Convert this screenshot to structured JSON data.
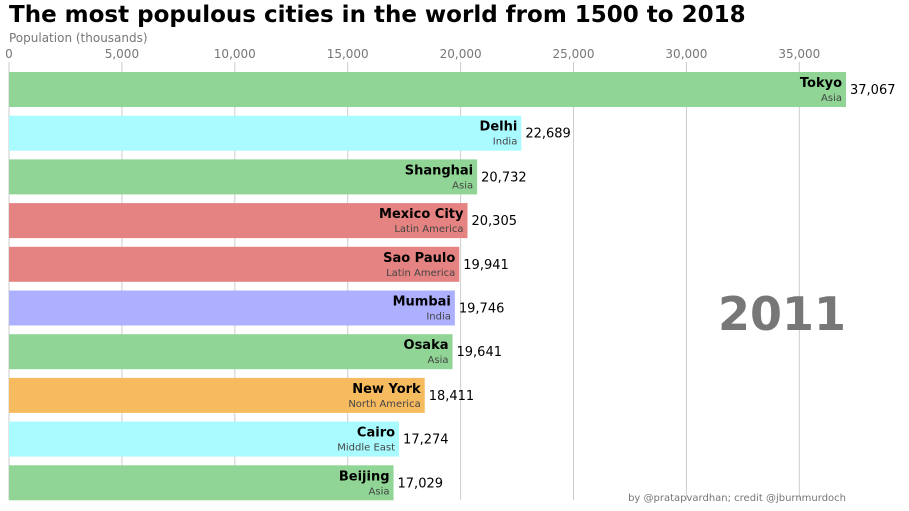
{
  "chart_data": {
    "type": "bar",
    "title": "The most populous cities in the world from 1500 to 2018",
    "ylabel": "Population (thousands)",
    "xlabel": "",
    "year": "2011",
    "credit": "by @pratapvardhan; credit @jburnmurdoch",
    "xlim": [
      0,
      37067
    ],
    "xticks": [
      0,
      5000,
      10000,
      15000,
      20000,
      25000,
      30000,
      35000
    ],
    "xtick_labels": [
      "0",
      "5,000",
      "10,000",
      "15,000",
      "20,000",
      "25,000",
      "30,000",
      "35,000"
    ],
    "grid": true,
    "bars": [
      {
        "name": "Tokyo",
        "group": "Asia",
        "value": 37067,
        "value_label": "37,067",
        "color": "#90d595"
      },
      {
        "name": "Delhi",
        "group": "India",
        "value": 22689,
        "value_label": "22,689",
        "color": "#aafbff"
      },
      {
        "name": "Shanghai",
        "group": "Asia",
        "value": 20732,
        "value_label": "20,732",
        "color": "#90d595"
      },
      {
        "name": "Mexico City",
        "group": "Latin America",
        "value": 20305,
        "value_label": "20,305",
        "color": "#e48381"
      },
      {
        "name": "Sao Paulo",
        "group": "Latin America",
        "value": 19941,
        "value_label": "19,941",
        "color": "#e48381"
      },
      {
        "name": "Mumbai",
        "group": "India",
        "value": 19746,
        "value_label": "19,746",
        "color": "#adb0ff"
      },
      {
        "name": "Osaka",
        "group": "Asia",
        "value": 19641,
        "value_label": "19,641",
        "color": "#90d595"
      },
      {
        "name": "New York",
        "group": "North America",
        "value": 18411,
        "value_label": "18,411",
        "color": "#f7bb5f"
      },
      {
        "name": "Cairo",
        "group": "Middle East",
        "value": 17274,
        "value_label": "17,274",
        "color": "#aafbff"
      },
      {
        "name": "Beijing",
        "group": "Asia",
        "value": 17029,
        "value_label": "17,029",
        "color": "#90d595"
      }
    ]
  }
}
